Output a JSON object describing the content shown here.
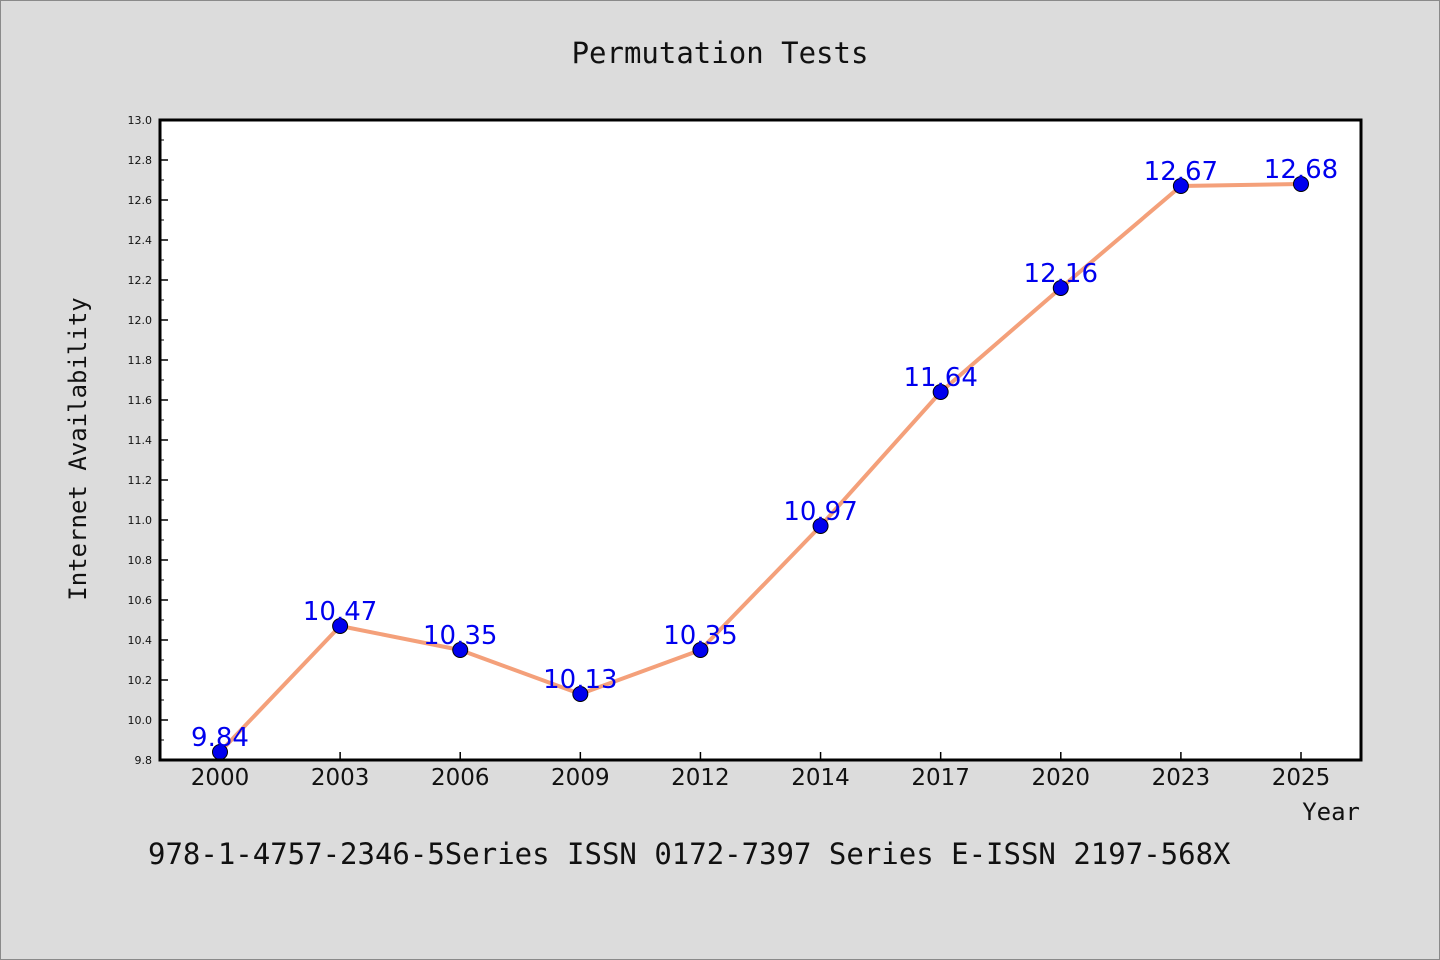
{
  "chart_data": {
    "type": "line",
    "title": "Permutation Tests",
    "xlabel": "Year",
    "ylabel": "Internet Availability",
    "categories": [
      "2000",
      "2003",
      "2006",
      "2009",
      "2012",
      "2014",
      "2017",
      "2020",
      "2023",
      "2025"
    ],
    "series": [
      {
        "values": [
          9.84,
          10.47,
          10.35,
          10.13,
          10.35,
          10.97,
          11.64,
          12.16,
          12.67,
          12.68
        ],
        "data_labels": [
          "9.84",
          "10.47",
          "10.35",
          "10.13",
          "10.35",
          "10.97",
          "11.64",
          "12.16",
          "12.67",
          "12.68"
        ],
        "line_color": "#f4a07a",
        "marker_color": "#0000ee"
      }
    ],
    "ylim": [
      9.8,
      13.0
    ],
    "y_ticks": [
      "9.8",
      "10.0",
      "10.2",
      "10.4",
      "10.6",
      "10.8",
      "11.0",
      "11.2",
      "11.4",
      "11.6",
      "11.8",
      "12.0",
      "12.2",
      "12.4",
      "12.6",
      "12.8",
      "13.0"
    ],
    "grid": false,
    "legend": "none"
  },
  "footer_text": "978-1-4757-2346-5Series ISSN 0172-7397 Series E-ISSN 2197-568X",
  "colors": {
    "background": "#dcdcdc",
    "plot_background": "#ffffff",
    "line": "#f4a07a",
    "marker": "#0000ee",
    "data_label": "#0000ee"
  }
}
